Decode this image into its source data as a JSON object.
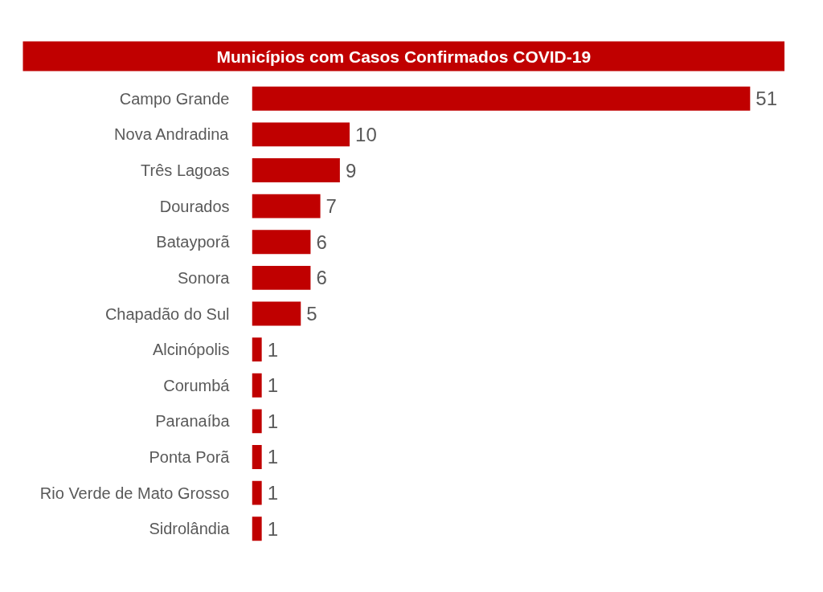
{
  "chart_data": {
    "type": "bar",
    "orientation": "horizontal",
    "title": "Municípios com Casos Confirmados COVID-19",
    "categories": [
      "Campo Grande",
      "Nova Andradina",
      "Três Lagoas",
      "Dourados",
      "Batayporã",
      "Sonora",
      "Chapadão do Sul",
      "Alcinópolis",
      "Corumbá",
      "Paranaíba",
      "Ponta Porã",
      "Rio Verde de Mato Grosso",
      "Sidrolândia"
    ],
    "values": [
      51,
      10,
      9,
      7,
      6,
      6,
      5,
      1,
      1,
      1,
      1,
      1,
      1
    ],
    "color": "#c00000",
    "data_labels": true,
    "grid": false
  }
}
